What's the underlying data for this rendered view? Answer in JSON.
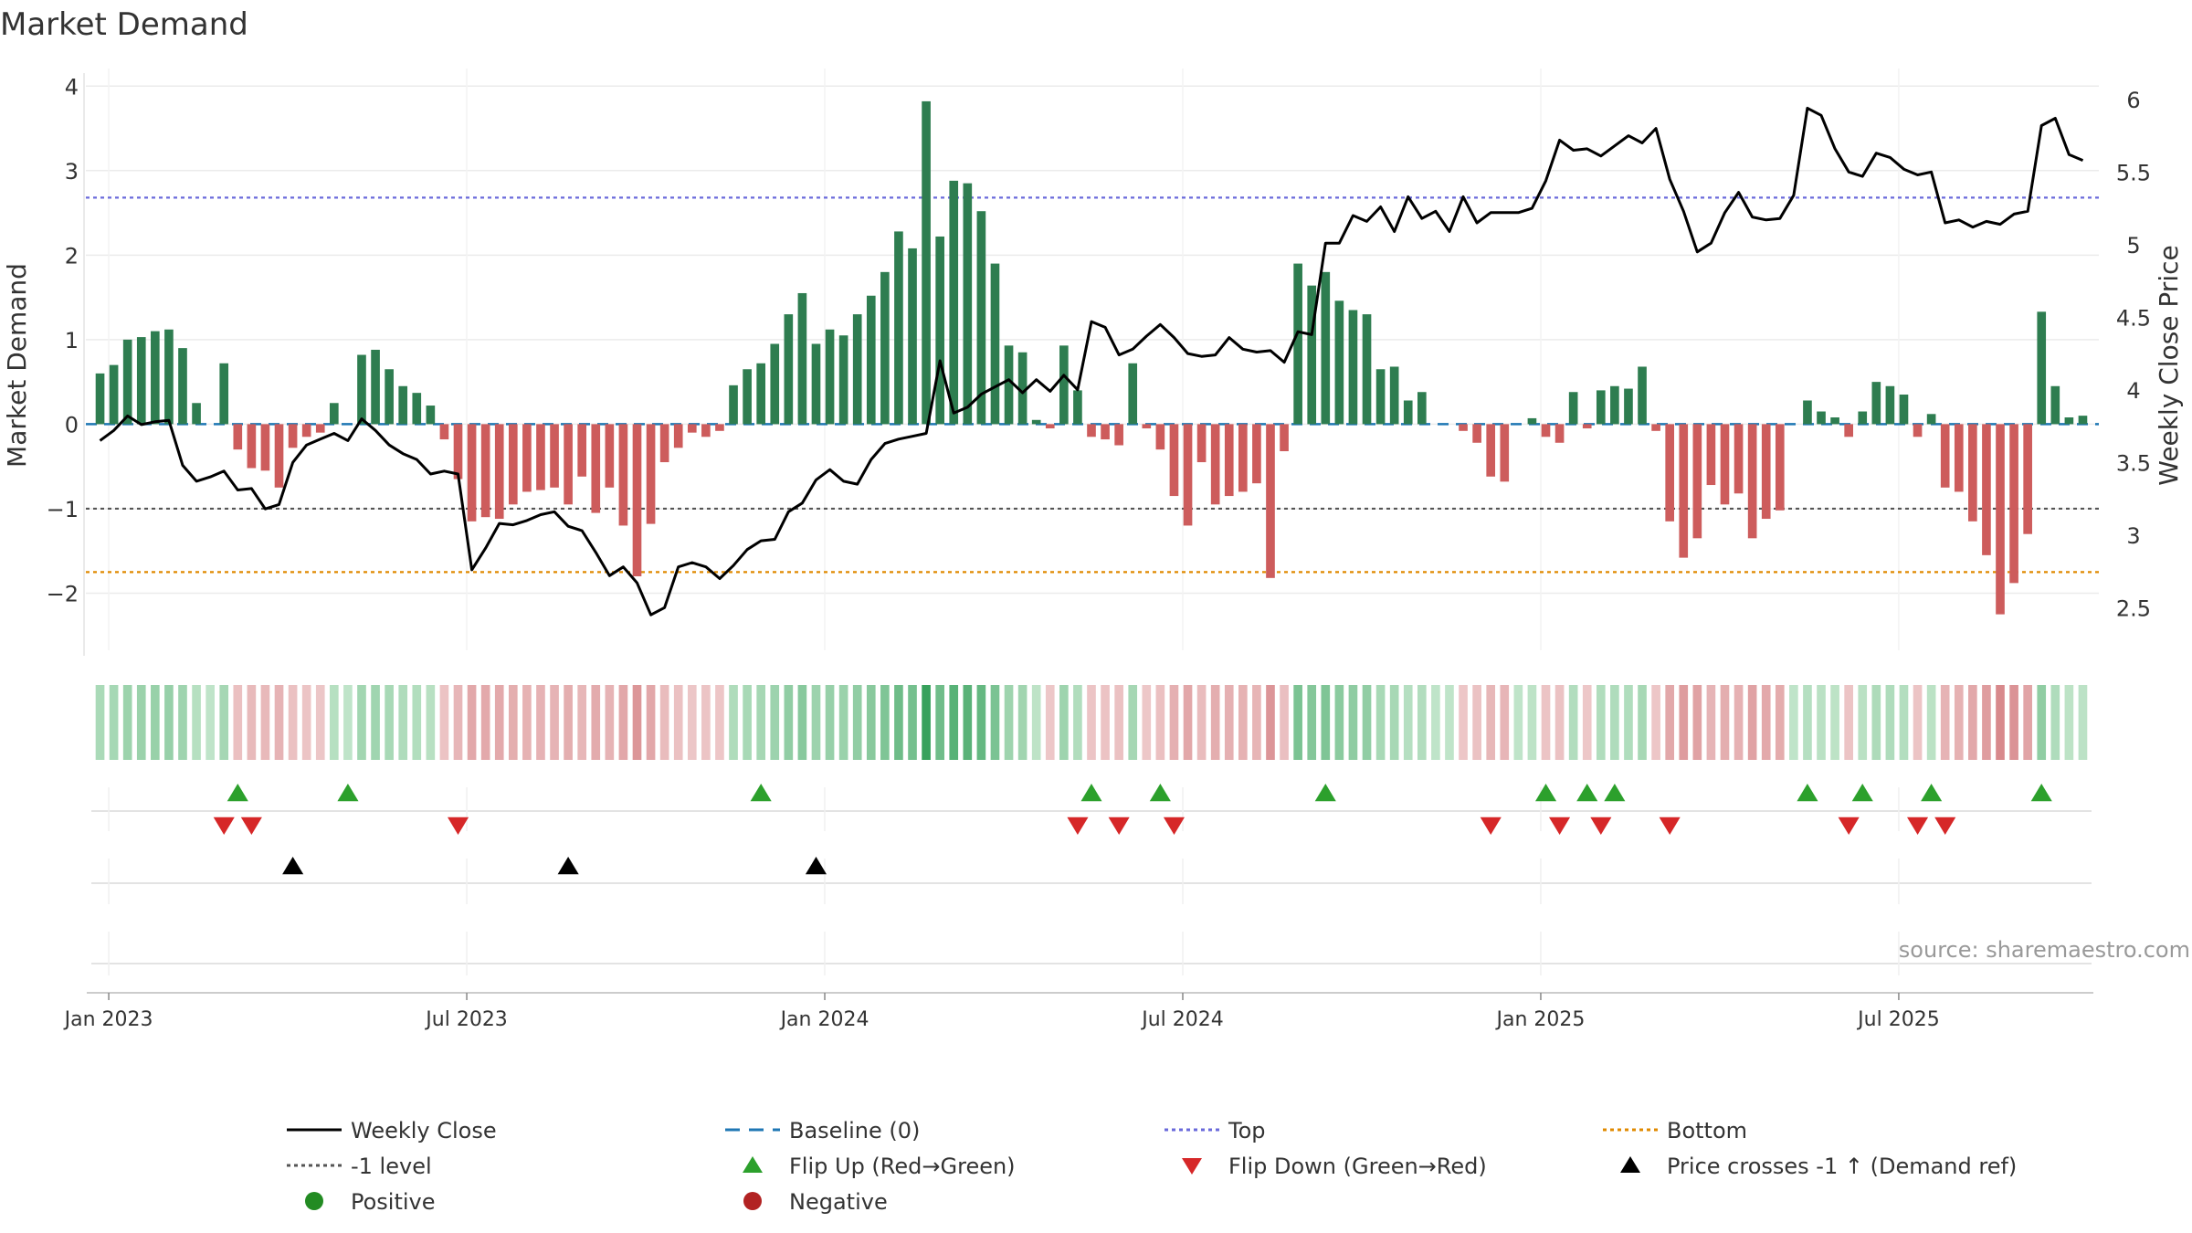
{
  "chart_data": {
    "type": "bar",
    "title": "Market Demand",
    "ylabel": "Market Demand",
    "y2label": "Weekly Close Price",
    "ylim": [
      -2.6,
      4.1
    ],
    "y2lim": [
      2.25,
      6.15
    ],
    "yticks": [
      4,
      3,
      2,
      1,
      0,
      -1,
      -2
    ],
    "ytick_labels": [
      "4",
      "3",
      "2",
      "1",
      "0",
      "−1",
      "−2"
    ],
    "y2ticks": [
      6,
      5.5,
      5,
      4.5,
      4,
      3.5,
      3,
      2.5
    ],
    "y2tick_labels": [
      "6",
      "5.5",
      "5",
      "4.5",
      "4",
      "3.5",
      "3",
      "2.5"
    ],
    "xticks": [
      {
        "week": 1,
        "label": "Jan 2023"
      },
      {
        "week": 27,
        "label": "Jul 2023"
      },
      {
        "week": 53,
        "label": "Jan 2024"
      },
      {
        "week": 79,
        "label": "Jul 2024"
      },
      {
        "week": 105,
        "label": "Jan 2025"
      },
      {
        "week": 131,
        "label": "Jul 2025"
      }
    ],
    "reference_levels": {
      "top": 2.68,
      "minus_one": -1,
      "bottom": -1.75,
      "baseline": 0
    },
    "series": [
      {
        "name": "Market Demand",
        "values": [
          0.6,
          0.7,
          1.0,
          1.03,
          1.1,
          1.12,
          0.9,
          0.25,
          0.0,
          0.72,
          -0.3,
          -0.52,
          -0.55,
          -0.75,
          -0.28,
          -0.15,
          -0.1,
          0.25,
          0.0,
          0.82,
          0.88,
          0.65,
          0.45,
          0.37,
          0.22,
          -0.18,
          -0.65,
          -1.15,
          -1.1,
          -1.12,
          -0.95,
          -0.8,
          -0.78,
          -0.75,
          -0.95,
          -0.62,
          -1.05,
          -0.75,
          -1.2,
          -1.8,
          -1.18,
          -0.45,
          -0.28,
          -0.1,
          -0.15,
          -0.08,
          0.46,
          0.65,
          0.72,
          0.95,
          1.3,
          1.55,
          0.95,
          1.12,
          1.05,
          1.3,
          1.52,
          1.8,
          2.28,
          2.08,
          3.82,
          2.22,
          2.88,
          2.85,
          2.52,
          1.9,
          0.93,
          0.85,
          0.05,
          -0.05,
          0.93,
          0.4,
          -0.15,
          -0.18,
          -0.25,
          0.72,
          -0.05,
          -0.3,
          -0.85,
          -1.2,
          -0.45,
          -0.95,
          -0.85,
          -0.8,
          -0.7,
          -1.82,
          -0.32,
          1.9,
          1.64,
          1.8,
          1.46,
          1.35,
          1.3,
          0.65,
          0.68,
          0.28,
          0.38,
          0.0,
          0.0,
          -0.08,
          -0.22,
          -0.62,
          -0.68,
          0.0,
          0.07,
          -0.15,
          -0.22,
          0.38,
          -0.05,
          0.4,
          0.45,
          0.42,
          0.68,
          -0.08,
          -1.15,
          -1.58,
          -1.35,
          -0.72,
          -0.95,
          -0.82,
          -1.35,
          -1.12,
          -1.02,
          0.0,
          0.28,
          0.15,
          0.08,
          -0.15,
          0.15,
          0.5,
          0.45,
          0.35,
          -0.15,
          0.12,
          -0.75,
          -0.8,
          -1.15,
          -1.55,
          -2.25,
          -1.88,
          -1.3,
          1.33,
          0.45,
          0.08,
          0.1
        ]
      },
      {
        "name": "Weekly Close",
        "axis": "right",
        "values": [
          3.65,
          3.72,
          3.82,
          3.76,
          3.78,
          3.79,
          3.48,
          3.37,
          3.4,
          3.44,
          3.31,
          3.32,
          3.18,
          3.21,
          3.5,
          3.62,
          3.66,
          3.7,
          3.65,
          3.8,
          3.72,
          3.62,
          3.56,
          3.52,
          3.42,
          3.44,
          3.42,
          2.76,
          2.91,
          3.08,
          3.07,
          3.1,
          3.14,
          3.16,
          3.06,
          3.03,
          2.88,
          2.72,
          2.78,
          2.67,
          2.45,
          2.5,
          2.78,
          2.81,
          2.78,
          2.7,
          2.79,
          2.9,
          2.96,
          2.97,
          3.16,
          3.22,
          3.38,
          3.45,
          3.37,
          3.35,
          3.52,
          3.63,
          3.66,
          3.68,
          3.7,
          4.2,
          3.84,
          3.88,
          3.97,
          4.02,
          4.07,
          3.98,
          4.07,
          3.99,
          4.1,
          4.0,
          4.47,
          4.43,
          4.24,
          4.28,
          4.37,
          4.45,
          4.36,
          4.25,
          4.23,
          4.24,
          4.36,
          4.28,
          4.26,
          4.27,
          4.19,
          4.4,
          4.38,
          5.01,
          5.01,
          5.2,
          5.16,
          5.26,
          5.09,
          5.33,
          5.18,
          5.23,
          5.09,
          5.33,
          5.15,
          5.22,
          5.22,
          5.22,
          5.25,
          5.44,
          5.72,
          5.65,
          5.66,
          5.61,
          5.68,
          5.75,
          5.7,
          5.8,
          5.45,
          5.23,
          4.95,
          5.01,
          5.22,
          5.36,
          5.19,
          5.17,
          5.18,
          5.34,
          5.94,
          5.89,
          5.66,
          5.5,
          5.47,
          5.63,
          5.6,
          5.52,
          5.48,
          5.5,
          5.15,
          5.17,
          5.12,
          5.16,
          5.14,
          5.21,
          5.23,
          5.82,
          5.87,
          5.62,
          5.58
        ]
      }
    ],
    "heat_strip_values": "same as Market Demand series",
    "markers": {
      "flip_up_weeks": [
        10,
        18,
        48,
        72,
        77,
        89,
        105,
        108,
        110,
        124,
        128,
        133,
        141
      ],
      "flip_down_weeks": [
        9,
        11,
        26,
        71,
        74,
        78,
        101,
        106,
        109,
        114,
        127,
        132,
        134
      ],
      "price_cross_weeks": [
        14,
        34,
        52
      ]
    },
    "legend": [
      {
        "label": "Weekly Close",
        "symbol": "solid-line",
        "color": "#000000"
      },
      {
        "label": "Baseline (0)",
        "symbol": "dashed-line",
        "color": "#1f77b4"
      },
      {
        "label": "Top",
        "symbol": "dotted-line",
        "color": "#6a6adb"
      },
      {
        "label": "Bottom",
        "symbol": "dotted-line",
        "color": "#e08a00"
      },
      {
        "label": "-1 level",
        "symbol": "dotted-line",
        "color": "#555555"
      },
      {
        "label": "Flip Up (Red→Green)",
        "symbol": "triangle-up",
        "color": "#2ca02c"
      },
      {
        "label": "Flip Down (Green→Red)",
        "symbol": "triangle-down",
        "color": "#d62728"
      },
      {
        "label": "Price crosses -1 ↑ (Demand ref)",
        "symbol": "triangle-up",
        "color": "#000000"
      },
      {
        "label": "Positive",
        "symbol": "dot",
        "color": "#228b22"
      },
      {
        "label": "Negative",
        "symbol": "dot",
        "color": "#b22222"
      }
    ],
    "legend_position": "bottom",
    "source": "source: sharemaestro.com",
    "colors": {
      "positive_bar": "#2e7d50",
      "negative_bar": "#cd5c5c",
      "close_line": "#000000",
      "grid": "#ebebeb"
    }
  }
}
